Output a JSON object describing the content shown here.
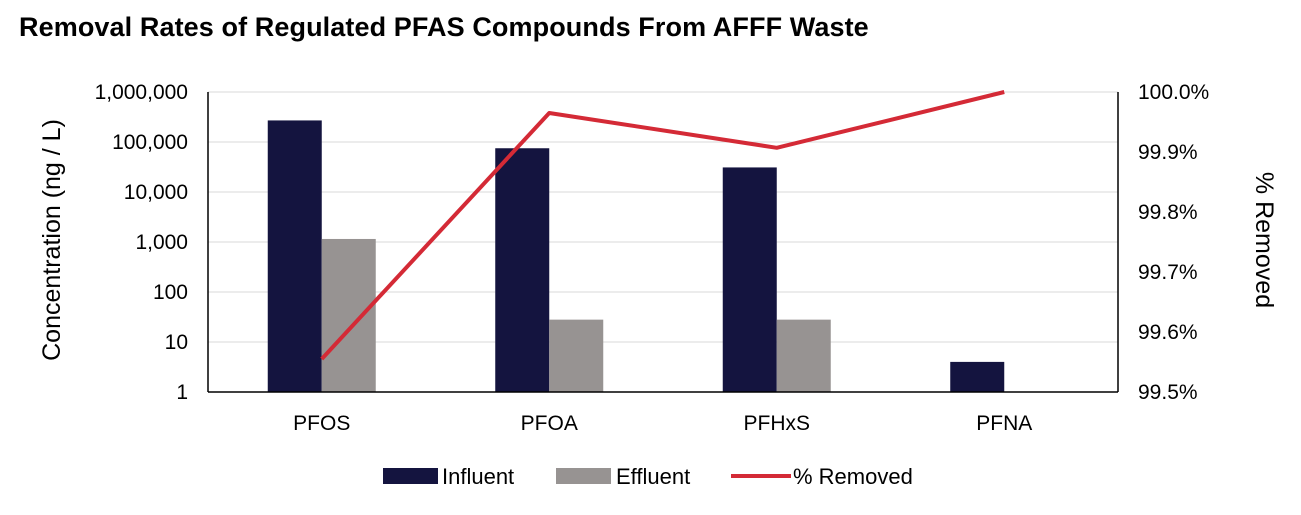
{
  "chart_data": {
    "type": "bar",
    "title": "Removal Rates of Regulated PFAS Compounds From AFFF Waste",
    "ylabel": "Concentration (ng / L)",
    "y2label": "% Removed",
    "yscale": "log",
    "ylim": [
      1,
      1000000
    ],
    "y2lim": [
      99.5,
      100.0
    ],
    "categories": [
      "PFOS",
      "PFOA",
      "PFHxS",
      "PFNA"
    ],
    "yticks": [
      "1,000,000",
      "100,000",
      "10,000",
      "1,000",
      "100",
      "10",
      "1"
    ],
    "y2ticks": [
      "100.0%",
      "99.9%",
      "99.8%",
      "99.7%",
      "99.6%",
      "99.5%"
    ],
    "series": [
      {
        "name": "Influent",
        "kind": "bar",
        "axis": "left",
        "color": "#14143f",
        "values": [
          270000,
          75000,
          31000,
          4
        ]
      },
      {
        "name": "Effluent",
        "kind": "bar",
        "axis": "left",
        "color": "#979392",
        "values": [
          1150,
          28,
          28,
          null
        ]
      },
      {
        "name": "% Removed",
        "kind": "line",
        "axis": "right",
        "color": "#d42a36",
        "values": [
          99.555,
          99.965,
          99.907,
          100.0
        ]
      }
    ],
    "grid": true,
    "legend": "bottom"
  }
}
